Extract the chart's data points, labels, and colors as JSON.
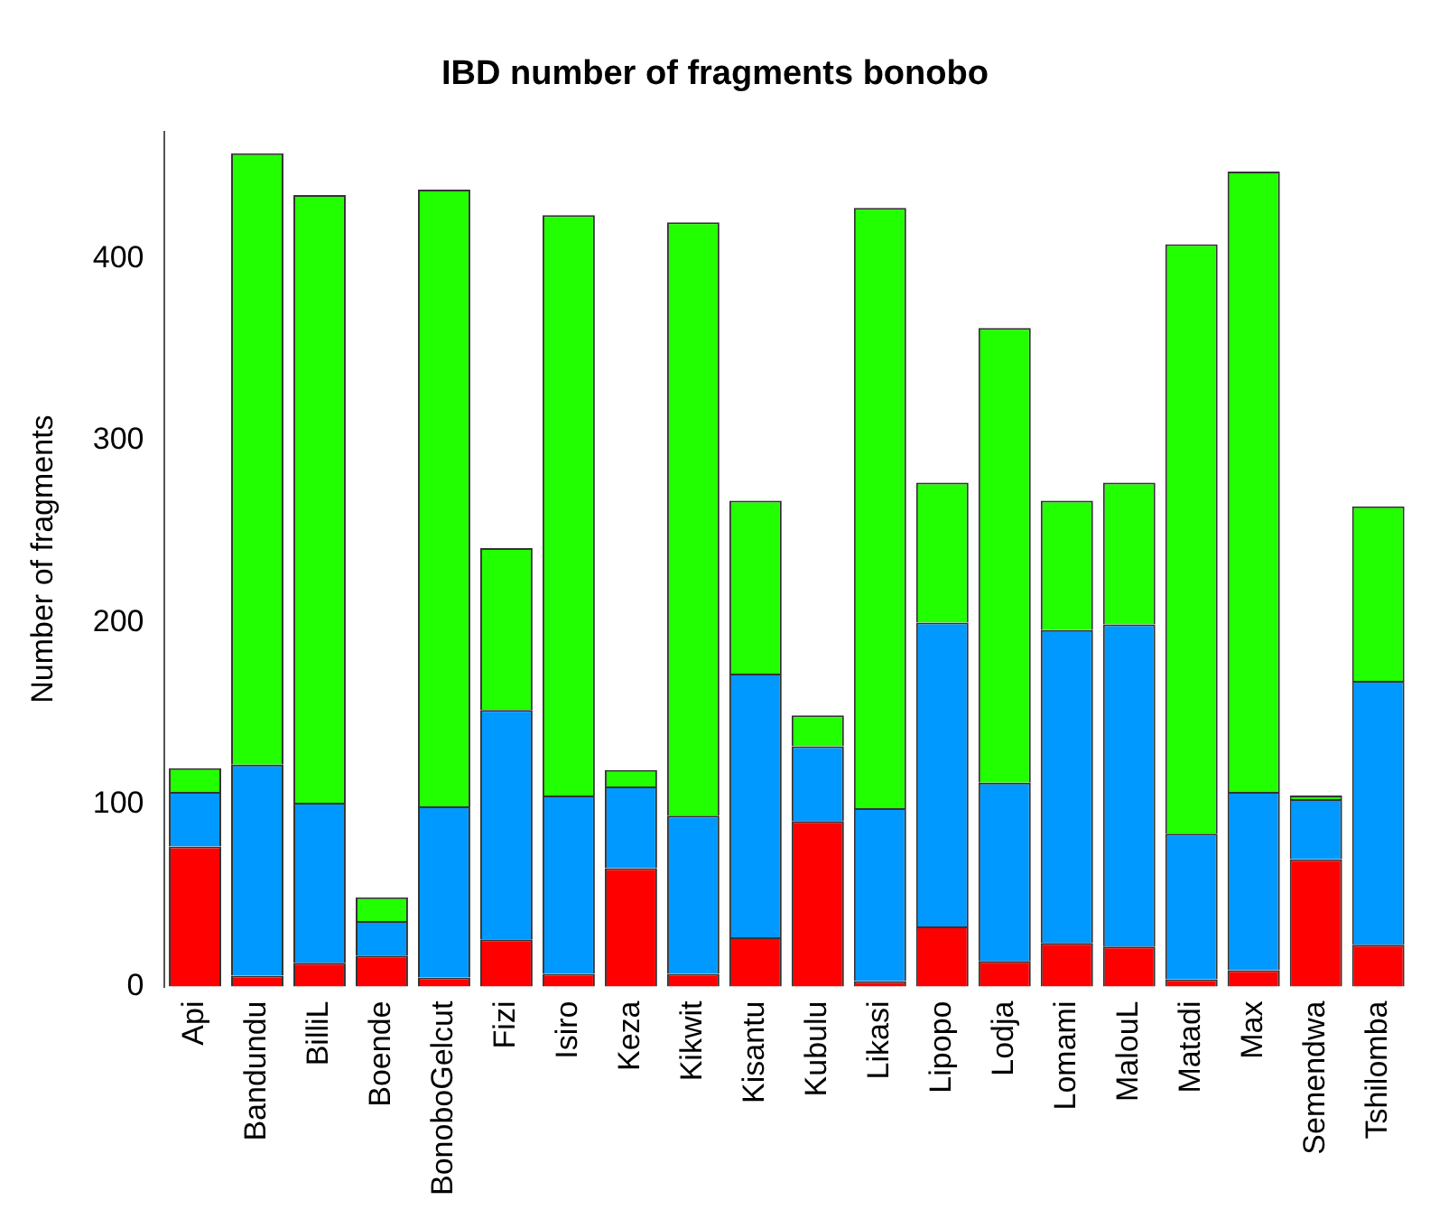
{
  "chart_data": {
    "type": "bar",
    "title": "IBD number of fragments bonobo",
    "ylabel": "Number of fragments",
    "stacked": true,
    "grid": false,
    "legend": false,
    "categories": [
      "Api",
      "Bandundu",
      "BilliL",
      "Boende",
      "BonoboGelcut",
      "Fizi",
      "Isiro",
      "Keza",
      "Kikwit",
      "Kisantu",
      "Kubulu",
      "Likasi",
      "Lipopo",
      "Lodja",
      "Lomami",
      "MalouL",
      "Matadi",
      "Max",
      "Semendwa",
      "Tshilomba"
    ],
    "ylim": [
      0,
      470
    ],
    "yticks": [
      0,
      100,
      200,
      300,
      400
    ],
    "series": [
      {
        "color": "#ff0000",
        "values": [
          77,
          6,
          13,
          17,
          5,
          26,
          7,
          65,
          7,
          27,
          91,
          3,
          33,
          14,
          24,
          22,
          4,
          9,
          70,
          23
        ]
      },
      {
        "color": "#0099ff",
        "values": [
          30,
          116,
          88,
          19,
          94,
          126,
          98,
          45,
          87,
          145,
          41,
          95,
          167,
          98,
          172,
          177,
          80,
          98,
          33,
          145
        ]
      },
      {
        "color": "#22ff00",
        "values": [
          13,
          336,
          334,
          13,
          339,
          89,
          319,
          9,
          326,
          95,
          17,
          330,
          77,
          250,
          71,
          78,
          324,
          341,
          2,
          96
        ]
      }
    ]
  }
}
